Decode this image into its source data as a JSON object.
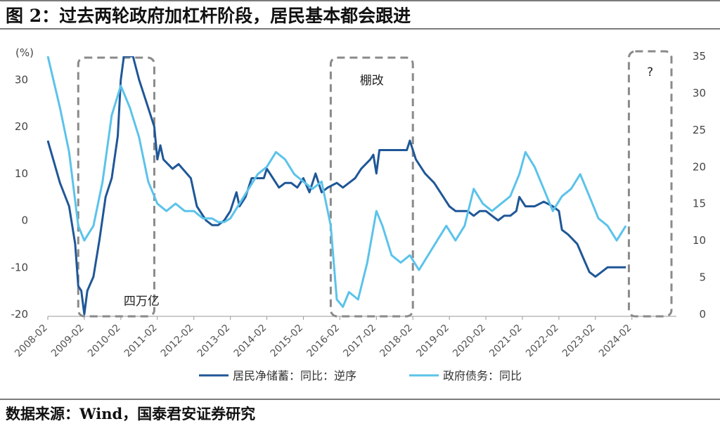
{
  "title": "图 2：过去两轮政府加杠杆阶段，居民基本都会跟进",
  "source": "数据来源：Wind，国泰君安证券研究",
  "chart_data": {
    "type": "line",
    "left_axis": {
      "unit_label": "(%)",
      "range": [
        -20,
        35
      ],
      "ticks": [
        -20,
        -10,
        0,
        10,
        20,
        30
      ]
    },
    "right_axis": {
      "range": [
        0,
        35
      ],
      "ticks": [
        0,
        5,
        10,
        15,
        20,
        25,
        30,
        35
      ]
    },
    "x_range": [
      "2008-02",
      "2024-12"
    ],
    "x_ticks": [
      "2008-02",
      "2009-02",
      "2010-02",
      "2011-02",
      "2012-02",
      "2013-02",
      "2014-02",
      "2015-02",
      "2016-02",
      "2017-02",
      "2018-02",
      "2019-02",
      "2020-02",
      "2021-02",
      "2022-02",
      "2023-02",
      "2024-02"
    ],
    "colors": {
      "household": "#1f5797",
      "government": "#5bc3ea",
      "box": "#8a8a8a"
    },
    "series": [
      {
        "name": "居民净储蓄：同比：逆序",
        "axis": "left",
        "color": "#1f5797",
        "points": [
          [
            "2008-02",
            17
          ],
          [
            "2008-06",
            8
          ],
          [
            "2008-09",
            3
          ],
          [
            "2008-11",
            -5
          ],
          [
            "2008-12",
            -14
          ],
          [
            "2009-01",
            -15
          ],
          [
            "2009-02",
            -20
          ],
          [
            "2009-03",
            -15
          ],
          [
            "2009-05",
            -12
          ],
          [
            "2009-07",
            -4
          ],
          [
            "2009-09",
            5
          ],
          [
            "2009-11",
            9
          ],
          [
            "2010-01",
            18
          ],
          [
            "2010-02",
            30
          ],
          [
            "2010-03",
            35
          ],
          [
            "2010-06",
            35
          ],
          [
            "2010-08",
            30
          ],
          [
            "2010-10",
            26
          ],
          [
            "2011-01",
            20
          ],
          [
            "2011-02",
            13
          ],
          [
            "2011-03",
            16
          ],
          [
            "2011-04",
            13
          ],
          [
            "2011-07",
            11
          ],
          [
            "2011-09",
            12
          ],
          [
            "2012-01",
            9
          ],
          [
            "2012-03",
            3
          ],
          [
            "2012-06",
            0
          ],
          [
            "2012-08",
            -1
          ],
          [
            "2012-10",
            -1
          ],
          [
            "2012-12",
            0
          ],
          [
            "2013-02",
            2
          ],
          [
            "2013-04",
            6
          ],
          [
            "2013-05",
            3
          ],
          [
            "2013-07",
            5
          ],
          [
            "2013-09",
            9
          ],
          [
            "2014-01",
            9
          ],
          [
            "2014-02",
            11
          ],
          [
            "2014-04",
            9
          ],
          [
            "2014-06",
            7
          ],
          [
            "2014-08",
            8
          ],
          [
            "2014-10",
            8
          ],
          [
            "2014-12",
            7
          ],
          [
            "2015-02",
            9
          ],
          [
            "2015-04",
            6
          ],
          [
            "2015-06",
            10
          ],
          [
            "2015-08",
            6
          ],
          [
            "2015-10",
            7
          ],
          [
            "2016-01",
            8
          ],
          [
            "2016-03",
            7
          ],
          [
            "2016-05",
            8
          ],
          [
            "2016-07",
            9
          ],
          [
            "2016-09",
            11
          ],
          [
            "2016-12",
            13
          ],
          [
            "2017-01",
            14
          ],
          [
            "2017-02",
            10
          ],
          [
            "2017-03",
            15
          ],
          [
            "2017-06",
            15
          ],
          [
            "2017-09",
            15
          ],
          [
            "2017-12",
            15
          ],
          [
            "2018-01",
            17
          ],
          [
            "2018-03",
            13
          ],
          [
            "2018-06",
            10
          ],
          [
            "2018-09",
            8
          ],
          [
            "2018-12",
            5
          ],
          [
            "2019-02",
            3
          ],
          [
            "2019-04",
            2
          ],
          [
            "2019-06",
            2
          ],
          [
            "2019-08",
            2
          ],
          [
            "2019-10",
            1
          ],
          [
            "2019-12",
            2
          ],
          [
            "2020-02",
            2
          ],
          [
            "2020-04",
            1
          ],
          [
            "2020-06",
            0
          ],
          [
            "2020-08",
            1
          ],
          [
            "2020-10",
            1
          ],
          [
            "2020-12",
            2
          ],
          [
            "2021-01",
            5
          ],
          [
            "2021-03",
            3
          ],
          [
            "2021-06",
            3
          ],
          [
            "2021-09",
            4
          ],
          [
            "2021-12",
            3
          ],
          [
            "2022-02",
            2
          ],
          [
            "2022-03",
            -2
          ],
          [
            "2022-05",
            -3
          ],
          [
            "2022-08",
            -5
          ],
          [
            "2022-10",
            -8
          ],
          [
            "2022-12",
            -11
          ],
          [
            "2023-02",
            -12
          ],
          [
            "2023-04",
            -11
          ],
          [
            "2023-06",
            -10
          ],
          [
            "2023-09",
            -10
          ],
          [
            "2023-12",
            -10
          ]
        ]
      },
      {
        "name": "政府债务：同比",
        "axis": "right",
        "color": "#5bc3ea",
        "points": [
          [
            "2008-02",
            35
          ],
          [
            "2008-06",
            28
          ],
          [
            "2008-09",
            22
          ],
          [
            "2008-12",
            12
          ],
          [
            "2009-02",
            10
          ],
          [
            "2009-05",
            12
          ],
          [
            "2009-08",
            18
          ],
          [
            "2009-11",
            27
          ],
          [
            "2010-02",
            31
          ],
          [
            "2010-05",
            28
          ],
          [
            "2010-08",
            24
          ],
          [
            "2010-11",
            18
          ],
          [
            "2011-02",
            15
          ],
          [
            "2011-05",
            14
          ],
          [
            "2011-08",
            15
          ],
          [
            "2011-11",
            14
          ],
          [
            "2012-02",
            14
          ],
          [
            "2012-05",
            13
          ],
          [
            "2012-08",
            13
          ],
          [
            "2012-10",
            12.5
          ],
          [
            "2012-12",
            12.5
          ],
          [
            "2013-02",
            13
          ],
          [
            "2013-05",
            15
          ],
          [
            "2013-08",
            17
          ],
          [
            "2013-11",
            19
          ],
          [
            "2014-02",
            20
          ],
          [
            "2014-05",
            22
          ],
          [
            "2014-08",
            21
          ],
          [
            "2014-11",
            19
          ],
          [
            "2015-02",
            18
          ],
          [
            "2015-05",
            17
          ],
          [
            "2015-08",
            18
          ],
          [
            "2015-11",
            12
          ],
          [
            "2016-01",
            2
          ],
          [
            "2016-03",
            1
          ],
          [
            "2016-05",
            3
          ],
          [
            "2016-08",
            2
          ],
          [
            "2016-11",
            7
          ],
          [
            "2017-02",
            14
          ],
          [
            "2017-04",
            12
          ],
          [
            "2017-07",
            8
          ],
          [
            "2017-10",
            7
          ],
          [
            "2018-01",
            8
          ],
          [
            "2018-04",
            6
          ],
          [
            "2018-07",
            8
          ],
          [
            "2018-10",
            10
          ],
          [
            "2019-01",
            12
          ],
          [
            "2019-04",
            10
          ],
          [
            "2019-07",
            12
          ],
          [
            "2019-10",
            17
          ],
          [
            "2020-01",
            15
          ],
          [
            "2020-04",
            14
          ],
          [
            "2020-07",
            15
          ],
          [
            "2020-10",
            16
          ],
          [
            "2021-01",
            19
          ],
          [
            "2021-03",
            22
          ],
          [
            "2021-06",
            20
          ],
          [
            "2021-09",
            17
          ],
          [
            "2021-12",
            14
          ],
          [
            "2022-03",
            16
          ],
          [
            "2022-06",
            17
          ],
          [
            "2022-09",
            19
          ],
          [
            "2022-12",
            16
          ],
          [
            "2023-03",
            13
          ],
          [
            "2023-06",
            12
          ],
          [
            "2023-09",
            10
          ],
          [
            "2023-12",
            12
          ]
        ]
      }
    ],
    "annotations": [
      {
        "label": "四万亿",
        "from": "2008-12",
        "to": "2011-01"
      },
      {
        "label": "棚改",
        "from": "2015-11",
        "to": "2018-02"
      },
      {
        "label": "?",
        "from": "2024-01",
        "to": "2025-03"
      }
    ],
    "legend": [
      "居民净储蓄：同比：逆序",
      "政府债务：同比"
    ]
  }
}
